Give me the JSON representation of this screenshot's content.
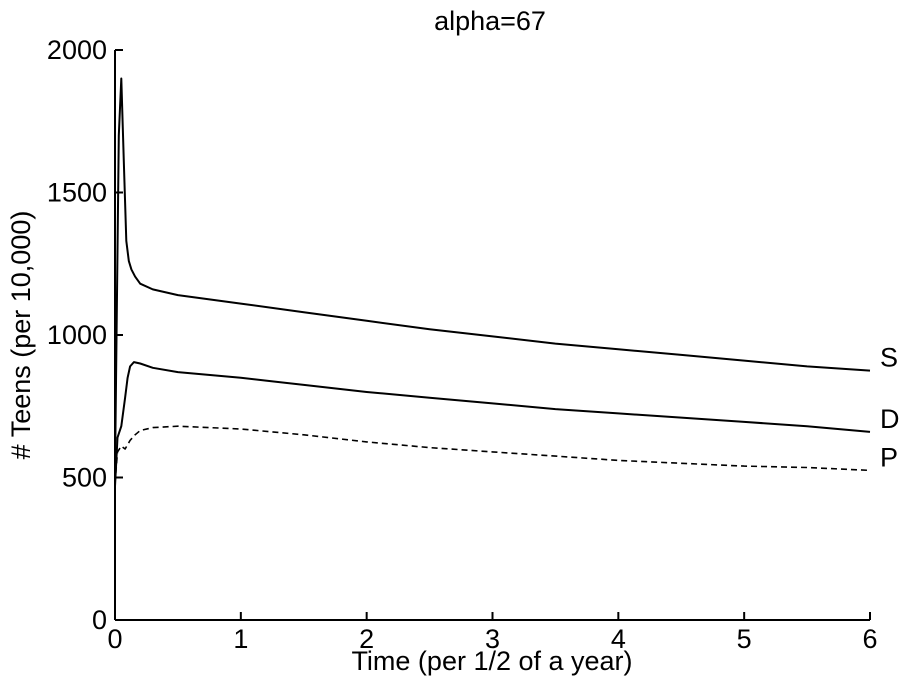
{
  "chart_data": {
    "type": "line",
    "title": "alpha=67",
    "xlabel": "Time (per 1/2 of a year)",
    "ylabel": "# Teens (per 10,000)",
    "xlim": [
      0,
      6
    ],
    "ylim": [
      0,
      2000
    ],
    "xticks": [
      0,
      1,
      2,
      3,
      4,
      5,
      6
    ],
    "yticks": [
      0,
      500,
      1000,
      1500,
      2000
    ],
    "grid": false,
    "series": [
      {
        "name": "S",
        "style": "solid",
        "x": [
          0,
          0.03,
          0.05,
          0.07,
          0.09,
          0.11,
          0.13,
          0.16,
          0.2,
          0.3,
          0.5,
          0.75,
          1,
          1.5,
          2,
          2.5,
          3,
          3.5,
          4,
          4.5,
          5,
          5.5,
          6
        ],
        "y": [
          520,
          1700,
          1900,
          1610,
          1330,
          1260,
          1230,
          1205,
          1180,
          1160,
          1140,
          1125,
          1110,
          1080,
          1050,
          1020,
          995,
          970,
          950,
          930,
          910,
          890,
          875
        ]
      },
      {
        "name": "D",
        "style": "solid",
        "x": [
          0,
          0.02,
          0.05,
          0.08,
          0.1,
          0.12,
          0.15,
          0.2,
          0.3,
          0.5,
          1,
          1.5,
          2,
          2.5,
          3,
          3.5,
          4,
          4.5,
          5,
          5.5,
          6
        ],
        "y": [
          470,
          640,
          680,
          780,
          850,
          890,
          905,
          900,
          885,
          870,
          850,
          825,
          800,
          780,
          760,
          740,
          725,
          710,
          695,
          680,
          660
        ]
      },
      {
        "name": "P",
        "style": "dashed",
        "x": [
          0,
          0.02,
          0.05,
          0.08,
          0.12,
          0.16,
          0.2,
          0.3,
          0.5,
          1,
          1.5,
          2,
          2.5,
          3,
          3.5,
          4,
          4.5,
          5,
          5.5,
          6
        ],
        "y": [
          480,
          590,
          610,
          600,
          630,
          650,
          665,
          675,
          680,
          670,
          650,
          625,
          605,
          590,
          575,
          560,
          550,
          540,
          535,
          525
        ]
      }
    ]
  }
}
